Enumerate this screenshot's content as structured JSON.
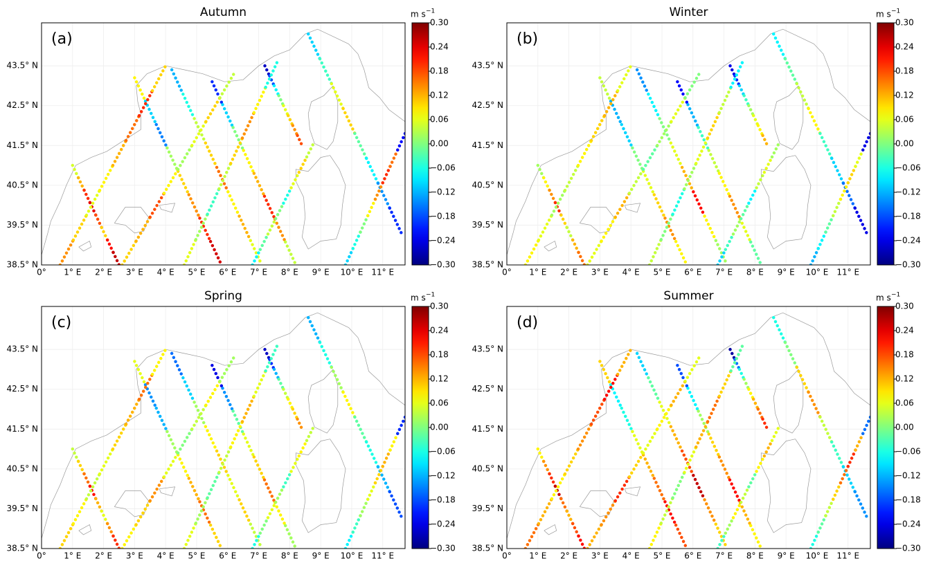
{
  "figure": {
    "axes": {
      "xlim": [
        0,
        11.72
      ],
      "ylim": [
        38.5,
        44.58
      ],
      "grid": true,
      "xticks": [
        {
          "value": 0,
          "label": "0°"
        },
        {
          "value": 1,
          "label": "1° E"
        },
        {
          "value": 2,
          "label": "2° E"
        },
        {
          "value": 3,
          "label": "3° E"
        },
        {
          "value": 4,
          "label": "4° E"
        },
        {
          "value": 5,
          "label": "5° E"
        },
        {
          "value": 6,
          "label": "6° E"
        },
        {
          "value": 7,
          "label": "7° E"
        },
        {
          "value": 8,
          "label": "8° E"
        },
        {
          "value": 9,
          "label": "9° E"
        },
        {
          "value": 10,
          "label": "10° E"
        },
        {
          "value": 11,
          "label": "11° E"
        }
      ],
      "yticks": [
        {
          "value": 38.5,
          "label": "38.5° N"
        },
        {
          "value": 39.5,
          "label": "39.5° N"
        },
        {
          "value": 40.5,
          "label": "40.5° N"
        },
        {
          "value": 41.5,
          "label": "41.5° N"
        },
        {
          "value": 42.5,
          "label": "42.5° N"
        },
        {
          "value": 43.5,
          "label": "43.5° N"
        }
      ]
    },
    "colorbar": {
      "unit": "m s",
      "unit_exponent": "−1",
      "clim": [
        -0.3,
        0.3
      ],
      "colormap": "jet",
      "ticks": [
        {
          "value": 0.3,
          "label": "0.30"
        },
        {
          "value": 0.24,
          "label": "0.24"
        },
        {
          "value": 0.18,
          "label": "0.18"
        },
        {
          "value": 0.12,
          "label": "0.12"
        },
        {
          "value": 0.06,
          "label": "0.06"
        },
        {
          "value": 0,
          "label": "0.00"
        },
        {
          "value": -0.06,
          "label": "−0.06"
        },
        {
          "value": -0.12,
          "label": "−0.12"
        },
        {
          "value": -0.18,
          "label": "−0.18"
        },
        {
          "value": -0.24,
          "label": "−0.24"
        },
        {
          "value": -0.3,
          "label": "−0.30"
        }
      ]
    },
    "tracks": [
      [
        1.0,
        41.0,
        2.5,
        38.5
      ],
      [
        3.0,
        43.2,
        5.8,
        38.5
      ],
      [
        4.2,
        43.4,
        7.1,
        38.5
      ],
      [
        5.5,
        43.1,
        8.2,
        38.5
      ],
      [
        7.2,
        43.5,
        8.4,
        41.5
      ],
      [
        8.6,
        44.3,
        11.6,
        39.3
      ],
      [
        0.6,
        38.5,
        4.0,
        43.5
      ],
      [
        2.6,
        38.5,
        6.2,
        43.3
      ],
      [
        4.6,
        38.5,
        7.6,
        43.6
      ],
      [
        6.8,
        38.5,
        8.8,
        41.6
      ],
      [
        9.8,
        38.5,
        11.72,
        41.8
      ]
    ],
    "panels": [
      {
        "title": "Autumn",
        "label": "(a)",
        "values": [
          [
            0.05,
            0.12,
            0.2,
            0.24,
            0.18,
            0.1,
            0.22,
            0.26
          ],
          [
            0.08,
            -0.1,
            -0.15,
            0.02,
            0.1,
            0.14,
            0.2,
            0.25
          ],
          [
            -0.12,
            -0.06,
            0.04,
            0.1,
            0.16,
            0.08,
            0.12,
            0.06
          ],
          [
            -0.2,
            -0.1,
            0.0,
            0.08,
            0.12,
            0.2,
            0.14,
            0.04
          ],
          [
            -0.26,
            -0.18,
            -0.08,
            0.0,
            0.06,
            0.1,
            0.14,
            0.18
          ],
          [
            -0.1,
            -0.04,
            0.06,
            0.1,
            -0.02,
            -0.08,
            -0.14,
            -0.2
          ],
          [
            0.14,
            0.1,
            0.06,
            0.08,
            0.12,
            0.16,
            0.2,
            0.1
          ],
          [
            0.1,
            0.12,
            0.18,
            0.08,
            0.02,
            0.06,
            0.1,
            0.04
          ],
          [
            0.06,
            0.02,
            -0.04,
            0.04,
            0.1,
            0.14,
            0.08,
            -0.06
          ],
          [
            -0.08,
            -0.02,
            0.04,
            0.0,
            -0.06,
            0.06,
            0.1,
            0.04
          ],
          [
            -0.1,
            -0.06,
            0.0,
            0.08,
            0.14,
            0.2,
            0.16,
            -0.22
          ]
        ]
      },
      {
        "title": "Winter",
        "label": "(b)",
        "values": [
          [
            0.02,
            0.08,
            0.14,
            0.2,
            0.1,
            0.04,
            0.12,
            0.16
          ],
          [
            0.04,
            -0.12,
            -0.1,
            0.0,
            0.06,
            0.1,
            0.14,
            0.08
          ],
          [
            -0.14,
            -0.08,
            0.0,
            0.06,
            0.12,
            0.22,
            0.08,
            0.02
          ],
          [
            -0.22,
            -0.12,
            -0.04,
            0.04,
            0.08,
            0.14,
            0.06,
            -0.02
          ],
          [
            -0.24,
            -0.2,
            -0.1,
            -0.04,
            0.02,
            0.06,
            0.08,
            0.12
          ],
          [
            -0.08,
            -0.02,
            0.04,
            0.08,
            -0.04,
            -0.1,
            -0.16,
            -0.24
          ],
          [
            0.08,
            0.06,
            0.02,
            0.04,
            0.08,
            0.1,
            0.12,
            0.06
          ],
          [
            0.06,
            0.08,
            0.12,
            0.04,
            -0.02,
            0.02,
            0.06,
            0.0
          ],
          [
            0.04,
            0.0,
            -0.06,
            0.02,
            0.06,
            0.1,
            0.04,
            -0.08
          ],
          [
            -0.1,
            -0.04,
            0.02,
            -0.02,
            -0.08,
            0.04,
            0.06,
            0.02
          ],
          [
            -0.12,
            -0.08,
            -0.02,
            0.04,
            0.08,
            0.1,
            0.06,
            -0.24
          ]
        ]
      },
      {
        "title": "Spring",
        "label": "(c)",
        "values": [
          [
            0.04,
            0.1,
            0.16,
            0.22,
            0.12,
            0.06,
            0.14,
            0.2
          ],
          [
            0.06,
            -0.14,
            -0.12,
            0.02,
            0.08,
            0.12,
            0.16,
            0.1
          ],
          [
            -0.16,
            -0.1,
            0.02,
            0.08,
            0.1,
            0.06,
            0.1,
            0.04
          ],
          [
            -0.24,
            -0.14,
            -0.02,
            0.06,
            0.1,
            0.16,
            0.08,
            0.02
          ],
          [
            -0.26,
            -0.2,
            -0.12,
            -0.02,
            0.04,
            0.08,
            0.1,
            0.14
          ],
          [
            -0.12,
            -0.06,
            0.02,
            0.08,
            -0.02,
            -0.06,
            -0.12,
            -0.18
          ],
          [
            0.1,
            0.08,
            0.04,
            0.06,
            0.1,
            0.12,
            0.16,
            0.08
          ],
          [
            0.08,
            0.1,
            0.14,
            0.06,
            0.0,
            0.04,
            0.08,
            0.02
          ],
          [
            0.06,
            0.02,
            -0.02,
            0.04,
            0.08,
            0.12,
            0.06,
            -0.04
          ],
          [
            -0.06,
            0.0,
            0.06,
            0.02,
            -0.04,
            0.06,
            0.08,
            0.04
          ],
          [
            -0.08,
            -0.04,
            0.02,
            0.06,
            0.1,
            0.12,
            0.08,
            -0.2
          ]
        ]
      },
      {
        "title": "Summer",
        "label": "(d)",
        "values": [
          [
            0.08,
            0.14,
            0.2,
            0.26,
            0.16,
            0.12,
            0.18,
            0.22
          ],
          [
            0.1,
            -0.08,
            -0.06,
            0.06,
            0.12,
            0.16,
            0.22,
            0.18
          ],
          [
            -0.1,
            -0.02,
            0.06,
            0.12,
            0.18,
            0.26,
            0.14,
            0.1
          ],
          [
            -0.18,
            -0.08,
            0.02,
            0.1,
            0.14,
            0.22,
            0.12,
            0.08
          ],
          [
            -0.28,
            -0.16,
            -0.06,
            0.02,
            0.08,
            0.12,
            0.16,
            0.2
          ],
          [
            -0.06,
            0.0,
            0.1,
            0.14,
            0.04,
            -0.04,
            -0.1,
            -0.14
          ],
          [
            0.16,
            0.12,
            0.08,
            0.1,
            0.14,
            0.18,
            0.22,
            0.12
          ],
          [
            0.12,
            0.14,
            0.2,
            0.1,
            0.06,
            0.08,
            0.12,
            0.06
          ],
          [
            0.08,
            0.04,
            0.0,
            0.06,
            0.12,
            0.16,
            0.1,
            -0.02
          ],
          [
            -0.04,
            0.02,
            0.08,
            0.04,
            -0.02,
            0.08,
            0.12,
            0.06
          ],
          [
            -0.06,
            -0.02,
            0.04,
            0.1,
            0.16,
            0.2,
            0.12,
            -0.16
          ]
        ]
      }
    ]
  }
}
